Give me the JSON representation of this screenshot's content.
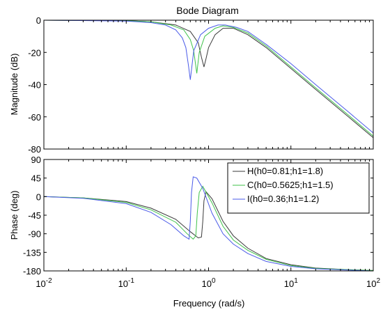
{
  "chart_data": {
    "type": "line",
    "title": "Bode Diagram",
    "xlabel": "Frequency  (rad/s)",
    "x_scale": "log",
    "x_ticks": [
      0.01,
      0.1,
      1,
      10,
      100
    ],
    "x_tick_labels": [
      {
        "base": "10",
        "exp": "-2"
      },
      {
        "base": "10",
        "exp": "-1"
      },
      {
        "base": "10",
        "exp": "0"
      },
      {
        "base": "10",
        "exp": "1"
      },
      {
        "base": "10",
        "exp": "2"
      }
    ],
    "xlim": [
      0.01,
      100
    ],
    "grid": false,
    "legend_position": "top-right of phase plot",
    "series_colors": [
      "#3a3a3a",
      "#3fc24a",
      "#4a5ae8"
    ],
    "magnitude": {
      "ylabel": "Magnitude (dB)",
      "ylim": [
        -80,
        0
      ],
      "y_ticks": [
        0,
        -20,
        -40,
        -60,
        -80
      ],
      "y_tick_labels": [
        "0",
        "-20",
        "-40",
        "-60",
        "-80"
      ],
      "series": [
        {
          "x": [
            0.01,
            0.1,
            0.2,
            0.4,
            0.6,
            0.75,
            0.82,
            0.88,
            0.93,
            1.0,
            1.2,
            1.5,
            2.0,
            3,
            5,
            10,
            20,
            50,
            100
          ],
          "y": [
            0,
            -0.3,
            -1,
            -3,
            -7,
            -14,
            -23,
            -29,
            -24,
            -17,
            -9,
            -5,
            -5,
            -9,
            -17,
            -30,
            -43,
            -60,
            -73
          ]
        },
        {
          "x": [
            0.01,
            0.1,
            0.2,
            0.35,
            0.5,
            0.6,
            0.66,
            0.72,
            0.77,
            0.9,
            1.2,
            1.5,
            2,
            3,
            5,
            10,
            20,
            50,
            100
          ],
          "y": [
            0,
            -0.3,
            -1,
            -3,
            -6,
            -12,
            -19,
            -33,
            -20,
            -10,
            -5,
            -3.5,
            -4.5,
            -8,
            -16,
            -29,
            -42,
            -59,
            -72
          ]
        },
        {
          "x": [
            0.01,
            0.1,
            0.2,
            0.3,
            0.4,
            0.48,
            0.53,
            0.57,
            0.6,
            0.66,
            0.8,
            1.0,
            1.3,
            1.6,
            2.2,
            3,
            5,
            10,
            20,
            50,
            100
          ],
          "y": [
            0,
            -0.5,
            -1.5,
            -3,
            -6,
            -11,
            -17,
            -28,
            -37,
            -19,
            -9,
            -5,
            -3,
            -3,
            -4.5,
            -7,
            -15,
            -27,
            -40,
            -57,
            -70
          ]
        }
      ]
    },
    "phase": {
      "ylabel": "Phase (deg)",
      "ylim": [
        -180,
        90
      ],
      "y_ticks": [
        90,
        45,
        0,
        -45,
        -90,
        -135,
        -180
      ],
      "y_tick_labels": [
        "90",
        "45",
        "0",
        "-45",
        "-90",
        "-135",
        "-180"
      ],
      "series": [
        {
          "name": "H(h0=0.81;h1=1.8)",
          "x": [
            0.01,
            0.03,
            0.1,
            0.2,
            0.4,
            0.6,
            0.75,
            0.82,
            0.85,
            0.88,
            0.93,
            1.1,
            1.5,
            2,
            3,
            5,
            10,
            20,
            50,
            100
          ],
          "y": [
            0,
            -3,
            -12,
            -28,
            -55,
            -85,
            -100,
            -98,
            -60,
            -10,
            12,
            -5,
            -60,
            -95,
            -125,
            -150,
            -165,
            -173,
            -177,
            -179
          ]
        },
        {
          "name": "C(h0=0.5625;h1=1.5)",
          "x": [
            0.01,
            0.03,
            0.1,
            0.2,
            0.4,
            0.55,
            0.65,
            0.7,
            0.73,
            0.77,
            0.85,
            1.1,
            1.5,
            2,
            3,
            5,
            10,
            20,
            50,
            100
          ],
          "y": [
            0,
            -3,
            -14,
            -32,
            -62,
            -90,
            -103,
            -95,
            -40,
            10,
            25,
            -15,
            -72,
            -105,
            -130,
            -152,
            -167,
            -174,
            -177,
            -179
          ]
        },
        {
          "name": "I(h0=0.36;h1=1.2)",
          "x": [
            0.01,
            0.03,
            0.1,
            0.2,
            0.35,
            0.5,
            0.58,
            0.6,
            0.62,
            0.65,
            0.72,
            0.85,
            1.1,
            1.5,
            2,
            3,
            5,
            10,
            20,
            50,
            100
          ],
          "y": [
            0,
            -4,
            -17,
            -38,
            -68,
            -95,
            -103,
            -60,
            10,
            48,
            45,
            20,
            -40,
            -90,
            -115,
            -138,
            -157,
            -169,
            -175,
            -178,
            -180
          ]
        }
      ]
    }
  }
}
